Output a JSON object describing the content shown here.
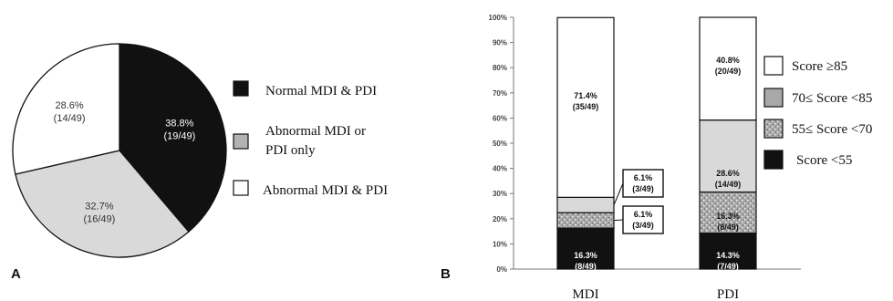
{
  "colors": {
    "black": "#111111",
    "gray": "#b2b2b2",
    "light_gray": "#d9d9d9",
    "white": "#ffffff",
    "axis": "#555555"
  },
  "panels": {
    "a_letter": "A",
    "b_letter": "B"
  },
  "chart_data": [
    {
      "type": "pie",
      "panel": "A",
      "slices": [
        {
          "category": "Normal MDI & PDI",
          "value": 38.8,
          "label_pct": "38.8%",
          "label_count": "(19/49)",
          "fill": "#111111"
        },
        {
          "category": "Abnormal MDI or PDI only",
          "value": 32.7,
          "label_pct": "32.7%",
          "label_count": "(16/49)",
          "fill": "#d9d9d9"
        },
        {
          "category": "Abnormal MDI & PDI",
          "value": 28.6,
          "label_pct": "28.6%",
          "label_count": "(14/49)",
          "fill": "#ffffff"
        }
      ],
      "legend": [
        {
          "line1": "Normal MDI & PDI",
          "line2": "",
          "swatch": "#111111"
        },
        {
          "line1": "Abnormal MDI or",
          "line2": "PDI only",
          "swatch": "#b2b2b2"
        },
        {
          "line1": "Abnormal MDI & PDI",
          "line2": "",
          "swatch": "#ffffff"
        }
      ],
      "legend_position": "right"
    },
    {
      "type": "bar",
      "stacked": true,
      "panel": "B",
      "categories": [
        "MDI",
        "PDI"
      ],
      "ylim": [
        0,
        100
      ],
      "yticks": [
        "0%",
        "10%",
        "20%",
        "30%",
        "40%",
        "50%",
        "60%",
        "70%",
        "80%",
        "90%",
        "100%"
      ],
      "series": [
        {
          "name": "Score <55",
          "values": [
            16.3,
            14.3
          ],
          "labels": [
            [
              "16.3%",
              "(8/49)"
            ],
            [
              "14.3%",
              "(7/49)"
            ]
          ],
          "fill": "#111111",
          "pattern": "solid"
        },
        {
          "name": "55≤ Score <70",
          "values": [
            6.1,
            16.3
          ],
          "labels": [
            [
              "6.1%",
              "(3/49)"
            ],
            [
              "16.3%",
              "(8/49)"
            ]
          ],
          "fill": "#a8a8a8",
          "pattern": "speckle"
        },
        {
          "name": "70≤ Score <85",
          "values": [
            6.1,
            28.6
          ],
          "labels": [
            [
              "6.1%",
              "(3/49)"
            ],
            [
              "28.6%",
              "(14/49)"
            ]
          ],
          "fill": "#d9d9d9",
          "pattern": "solid"
        },
        {
          "name": "Score ≥85",
          "values": [
            71.4,
            40.8
          ],
          "labels": [
            [
              "71.4%",
              "(35/49)"
            ],
            [
              "40.8%",
              "(20/49)"
            ]
          ],
          "fill": "#ffffff",
          "pattern": "solid"
        }
      ],
      "legend": [
        {
          "label": "Score ≥85",
          "swatch": "#ffffff",
          "pattern": "solid"
        },
        {
          "label": "70≤ Score <85",
          "swatch": "#a8a8a8",
          "pattern": "solid"
        },
        {
          "label": "55≤ Score <70",
          "swatch": "#a8a8a8",
          "pattern": "speckle"
        },
        {
          "label": "Score <55",
          "swatch": "#111111",
          "pattern": "solid"
        }
      ],
      "legend_position": "right",
      "grid": false
    }
  ]
}
